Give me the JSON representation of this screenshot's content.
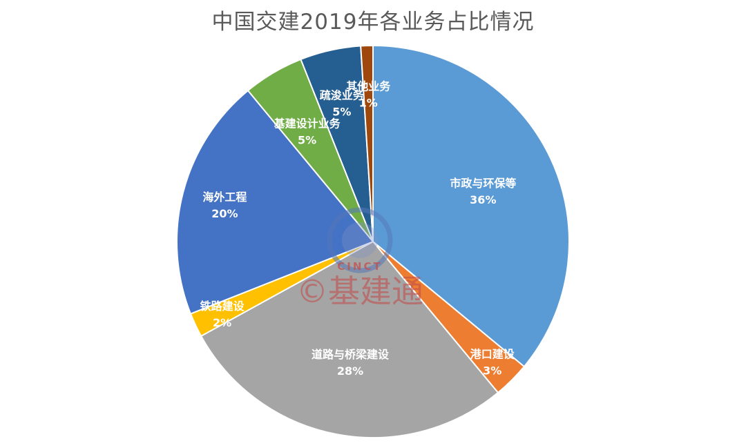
{
  "chart_data": {
    "type": "pie",
    "title": "中国交建2019年各业务占比情况",
    "slices": [
      {
        "label": "市政与环保等",
        "value": 36,
        "value_label": "36%",
        "color": "#5b9bd5"
      },
      {
        "label": "港口建设",
        "value": 3,
        "value_label": "3%",
        "color": "#ed7d31"
      },
      {
        "label": "道路与桥梁建设",
        "value": 28,
        "value_label": "28%",
        "color": "#a5a5a5"
      },
      {
        "label": "铁路建设",
        "value": 2,
        "value_label": "2%",
        "color": "#ffc000"
      },
      {
        "label": "海外工程",
        "value": 20,
        "value_label": "20%",
        "color": "#4472c4"
      },
      {
        "label": "基建设计业务",
        "value": 5,
        "value_label": "5%",
        "color": "#70ad47"
      },
      {
        "label": "疏浚业务",
        "value": 5,
        "value_label": "5%",
        "color": "#255e91"
      },
      {
        "label": "其他业务",
        "value": 1,
        "value_label": "1%",
        "color": "#9e480e"
      }
    ],
    "legend": "none"
  },
  "watermark": {
    "top_text": "CINCT",
    "main_text": "©基建通"
  }
}
